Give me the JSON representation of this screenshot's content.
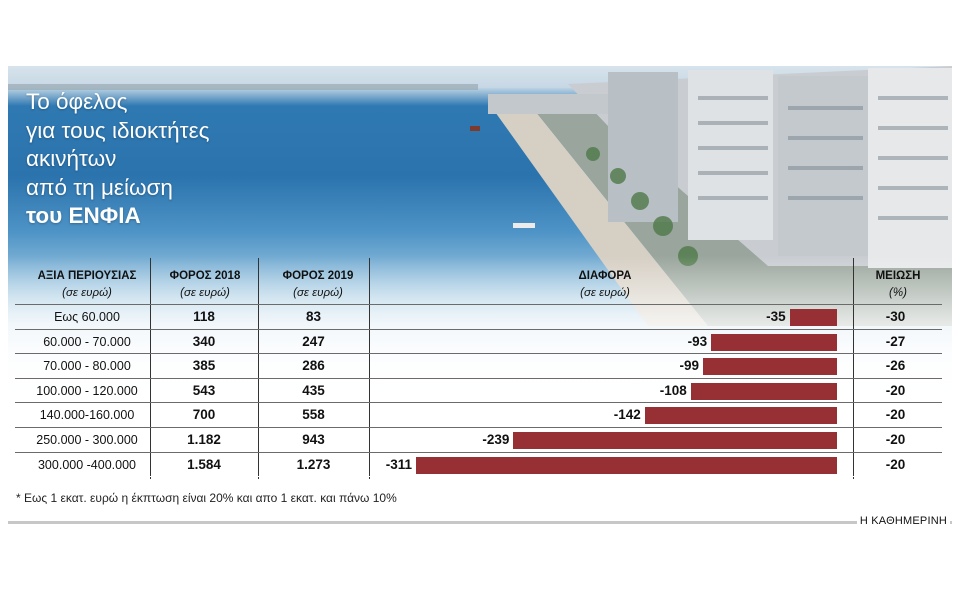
{
  "title_lines": [
    "Το όφελος",
    "για τους ιδιοκτήτες",
    "ακινήτων",
    "από τη μείωση",
    "του ΕΝΦΙΑ"
  ],
  "headers": {
    "value": "ΑΞΙΑ ΠΕΡΙΟΥΣΙΑΣ",
    "value_unit": "(σε ευρώ)",
    "tax2018": "ΦΟΡΟΣ 2018",
    "tax2018_unit": "(σε ευρώ)",
    "tax2019": "ΦΟΡΟΣ 2019",
    "tax2019_unit": "(σε ευρώ)",
    "diff": "ΔΙΑΦΟΡΑ",
    "diff_unit": "(σε ευρώ)",
    "reduction": "ΜΕΙΩΣΗ",
    "reduction_unit": "(%)"
  },
  "colors": {
    "bar": "#973035",
    "sea": "#2f79b2"
  },
  "chart_data": {
    "type": "bar",
    "orientation": "horizontal",
    "categories": [
      "Εως 60.000",
      "60.000 - 70.000",
      "70.000 - 80.000",
      "100.000 - 120.000",
      "140.000-160.000",
      "250.000 - 300.000",
      "300.000 -400.000"
    ],
    "columns": {
      "tax2018": [
        "118",
        "340",
        "385",
        "543",
        "700",
        "1.182",
        "1.584"
      ],
      "tax2019": [
        "83",
        "247",
        "286",
        "435",
        "558",
        "943",
        "1.273"
      ],
      "reduction": [
        "-30",
        "-27",
        "-26",
        "-20",
        "-20",
        "-20",
        "-20"
      ]
    },
    "values": [
      -35,
      -93,
      -99,
      -108,
      -142,
      -239,
      -311
    ],
    "labels": [
      "-35",
      "-93",
      "-99",
      "-108",
      "-142",
      "-239",
      "-311"
    ],
    "xlim": [
      -311,
      0
    ]
  },
  "footnote": "* Εως 1 εκατ. ευρώ η έκπτωση είναι 20% και απο 1 εκατ. και πάνω 10%",
  "brand": "Η ΚΑΘΗΜΕΡΙΝΗ"
}
